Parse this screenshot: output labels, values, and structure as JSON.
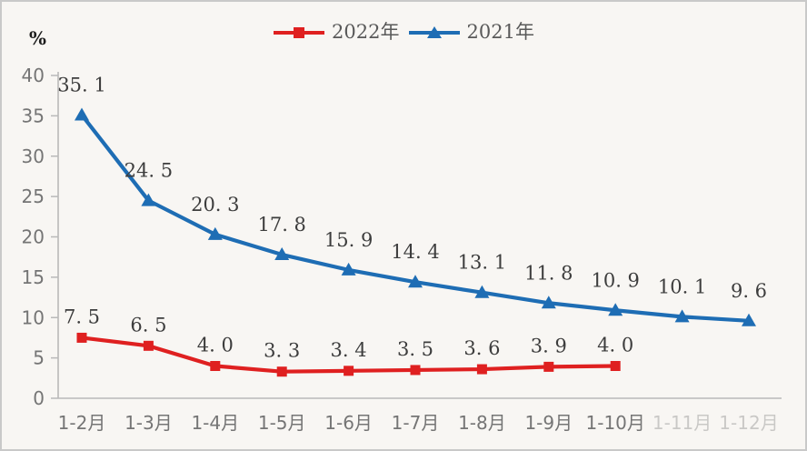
{
  "chart_data": {
    "type": "line",
    "title": "",
    "xlabel": "",
    "ylabel": "%",
    "ylim": [
      0,
      40
    ],
    "yticks": [
      0,
      5,
      10,
      15,
      20,
      25,
      30,
      35,
      40
    ],
    "grid": false,
    "legend_position": "top-center",
    "categories": [
      "1-2月",
      "1-3月",
      "1-4月",
      "1-5月",
      "1-6月",
      "1-7月",
      "1-8月",
      "1-9月",
      "1-10月",
      "1-11月",
      "1-12月"
    ],
    "faded_category_start_index": 9,
    "series": [
      {
        "name": "2022年",
        "color": "#df2020",
        "marker": "square",
        "values": [
          7.5,
          6.5,
          4.0,
          3.3,
          3.4,
          3.5,
          3.6,
          3.9,
          4.0
        ],
        "labels": [
          "7. 5",
          "6. 5",
          "4. 0",
          "3. 3",
          "3. 4",
          "3. 5",
          "3. 6",
          "3. 9",
          "4. 0"
        ]
      },
      {
        "name": "2021年",
        "color": "#1e6db4",
        "marker": "triangle",
        "values": [
          35.1,
          24.5,
          20.3,
          17.8,
          15.9,
          14.4,
          13.1,
          11.8,
          10.9,
          10.1,
          9.6
        ],
        "labels": [
          "35. 1",
          "24. 5",
          "20. 3",
          "17. 8",
          "15. 9",
          "14. 4",
          "13. 1",
          "11. 8",
          "10. 9",
          "10. 1",
          "9. 6"
        ]
      }
    ],
    "colors": {
      "background": "#f8f6f3",
      "outer_border": "#c9c9c9",
      "axis": "#b9b9b9",
      "tick_label": "#757575",
      "value_label": "#3d3d3d",
      "legend_text": "#595959"
    }
  }
}
